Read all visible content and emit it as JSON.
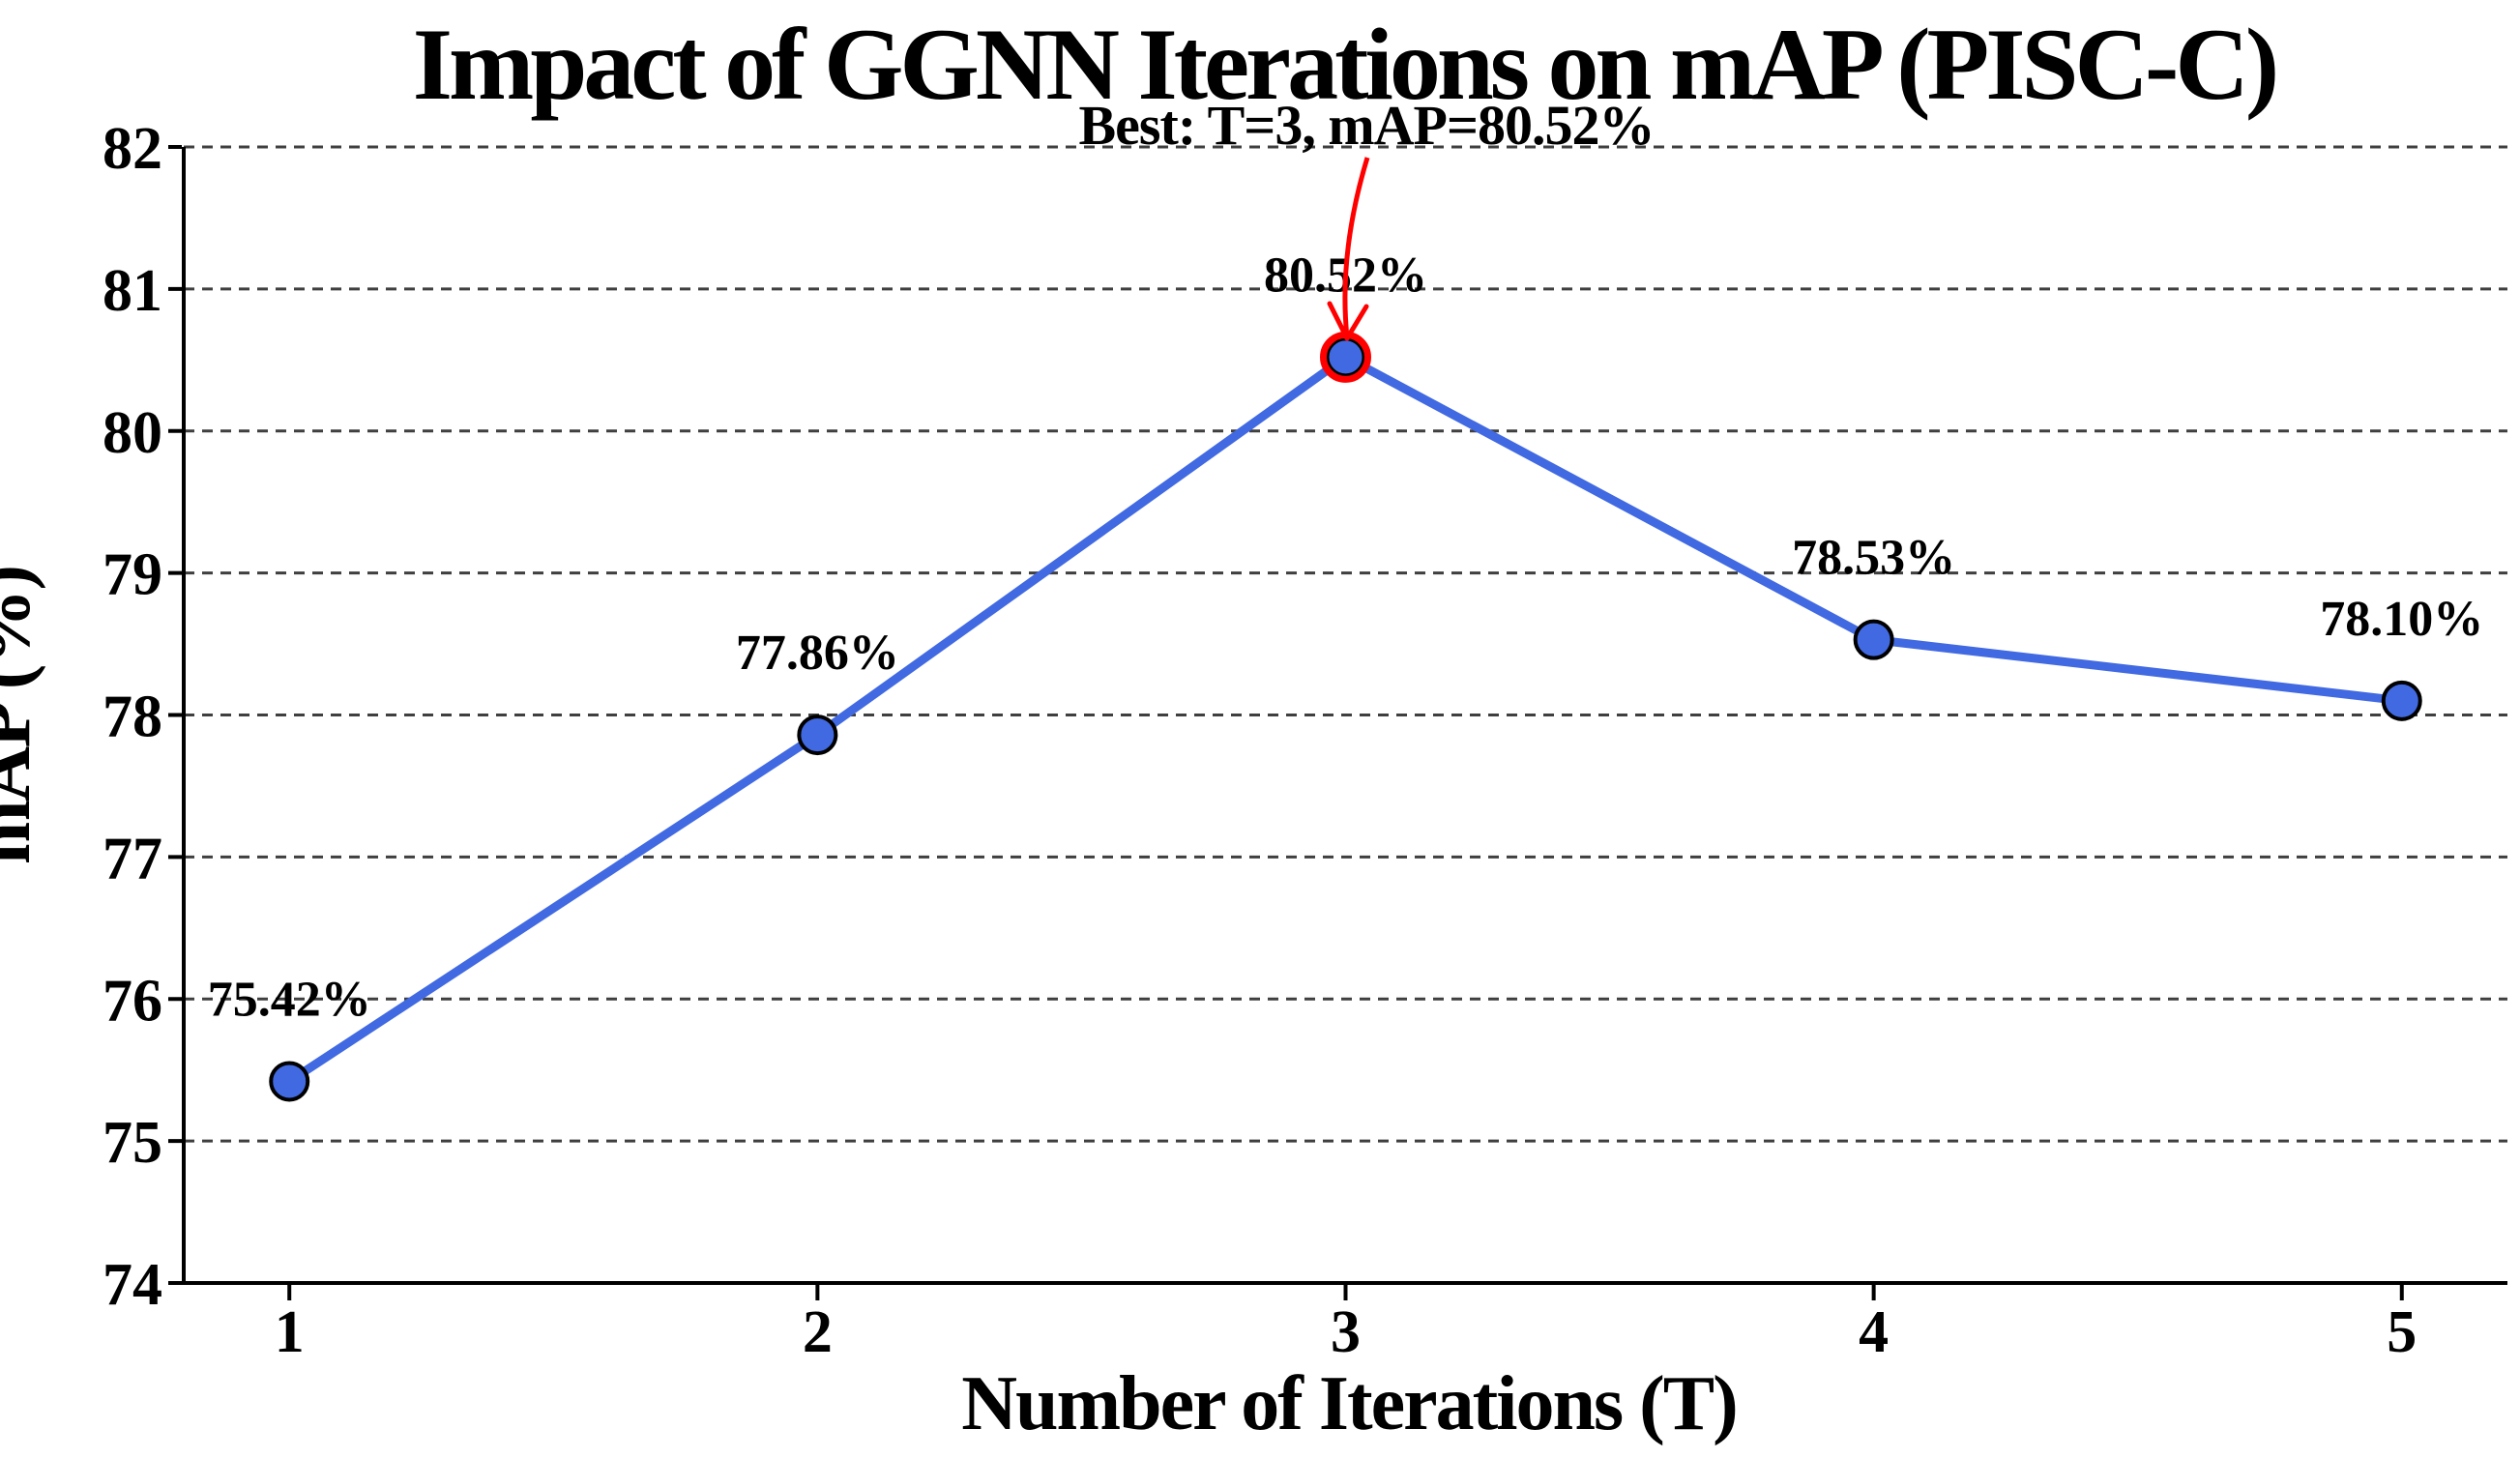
{
  "figure": {
    "background": "#FFFFFF"
  },
  "title": "Impact of GGNN Iterations on mAP (PISC-C)",
  "annotation": {
    "text": "Best: T=3, mAP=80.52%",
    "color": "#FF0000",
    "target": "data point at T=3"
  },
  "chart_data": {
    "type": "line",
    "title": "Impact of GGNN Iterations on mAP (PISC-C)",
    "xlabel": "Number of Iterations (T)",
    "ylabel": "mAP (%)",
    "x": [
      1,
      2,
      3,
      4,
      5
    ],
    "series": [
      {
        "name": "mAP",
        "values": [
          75.42,
          77.86,
          80.52,
          78.53,
          78.1
        ],
        "color": "#4169E1"
      }
    ],
    "point_labels": [
      "75.42%",
      "77.86%",
      "80.52%",
      "78.53%",
      "78.10%"
    ],
    "best_point": {
      "x": 3,
      "value": 80.52,
      "highlight_color": "#FF0000"
    },
    "xticks": [
      "1",
      "2",
      "3",
      "4",
      "5"
    ],
    "yticks": [
      74,
      75,
      76,
      77,
      78,
      79,
      80,
      81,
      82
    ],
    "xlim": [
      0.8,
      5.2
    ],
    "ylim": [
      74,
      82
    ],
    "grid": "horizontal dashed",
    "grid_color": "#3F3F3F",
    "legend": "none",
    "marker_edge_color": "#000000",
    "axis_color": "#000000",
    "label_color": "#4169E1"
  }
}
